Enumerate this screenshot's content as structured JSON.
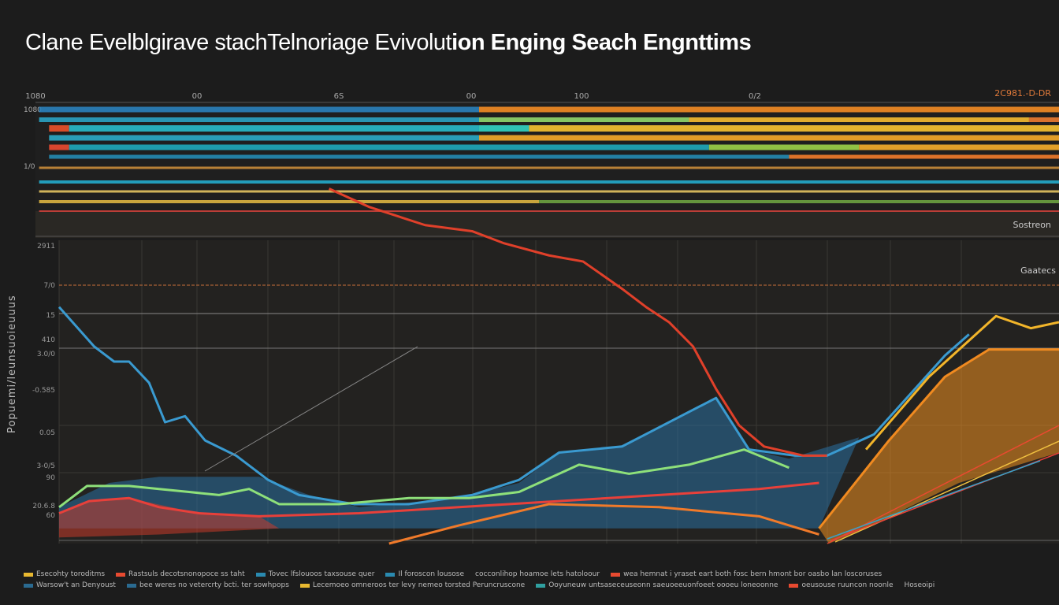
{
  "title_light": "Clane Evelblgirave stachTelnoriage Evivolut",
  "title_bold": "ion Enging Seach Engnttims",
  "y_axis_label": "Popuemi/leunsuoieuuus",
  "right_labels": [
    "2C981.-D-DR",
    "Sostreon",
    "Gaatecs"
  ],
  "chart_data": {
    "type": "line",
    "title": "Clane Evelblgirave stachTelnoriage Evivolution Enging Seach Engnttims",
    "top_tick_labels": [
      "1080",
      "00",
      "6S",
      "00",
      "100",
      "0/2"
    ],
    "y_tick_labels": [
      "2911",
      "7/0",
      "15",
      "410",
      "3.0/0",
      "-0.585",
      "0.05",
      "3-0/5",
      "90",
      "20.6.8",
      "60"
    ],
    "grid": true,
    "legend_placement": "bottom",
    "bars": [
      {
        "segments": [
          {
            "from": -2,
            "to": 42,
            "color": "#2a7fb8"
          },
          {
            "from": 42,
            "to": 100,
            "color": "#f08a24"
          }
        ]
      },
      {
        "segments": [
          {
            "from": -2,
            "to": 42,
            "color": "#2a9fc0"
          },
          {
            "from": 42,
            "to": 63,
            "color": "#8fd46a"
          },
          {
            "from": 63,
            "to": 97,
            "color": "#f2b830"
          },
          {
            "from": 97,
            "to": 100,
            "color": "#e87a30"
          }
        ]
      },
      {
        "segments": [
          {
            "from": -1,
            "to": 1,
            "color": "#e8502a"
          },
          {
            "from": 1,
            "to": 42,
            "color": "#28b8c8"
          },
          {
            "from": 42,
            "to": 47,
            "color": "#32d0c0"
          },
          {
            "from": 47,
            "to": 100,
            "color": "#f4c030"
          }
        ]
      },
      {
        "segments": [
          {
            "from": -1,
            "to": 42,
            "color": "#2aa8c4"
          },
          {
            "from": 42,
            "to": 100,
            "color": "#f2a828"
          }
        ]
      },
      {
        "segments": [
          {
            "from": -1,
            "to": 1,
            "color": "#e84a30"
          },
          {
            "from": 1,
            "to": 65,
            "color": "#1ea7b8"
          },
          {
            "from": 65,
            "to": 80,
            "color": "#9bd048"
          },
          {
            "from": 80,
            "to": 100,
            "color": "#f3ab2a"
          }
        ]
      },
      {
        "segments": [
          {
            "from": -1,
            "to": 73,
            "color": "#2489b0"
          },
          {
            "from": 73,
            "to": 100,
            "color": "#ee7a2a"
          }
        ]
      },
      {
        "segments": [
          {
            "from": -2,
            "to": 100,
            "color": "#c58a3a"
          }
        ]
      },
      {
        "segments": [
          {
            "from": -2,
            "to": 100,
            "color": "#24a8c8"
          }
        ]
      },
      {
        "segments": [
          {
            "from": -2,
            "to": 100,
            "color": "#e0c060"
          }
        ]
      },
      {
        "segments": [
          {
            "from": -2,
            "to": 48,
            "color": "#d8b040"
          },
          {
            "from": 48,
            "to": 100,
            "color": "#6aa040"
          }
        ]
      },
      {
        "segments": [
          {
            "from": -2,
            "to": 100,
            "color": "#c8403a"
          }
        ]
      }
    ],
    "series": [
      {
        "color": "#3a9ad0",
        "points": [
          [
            0,
            78
          ],
          [
            3.5,
            65
          ],
          [
            5.5,
            60
          ],
          [
            7,
            60
          ],
          [
            9,
            53
          ],
          [
            10.6,
            40
          ],
          [
            12.6,
            42
          ],
          [
            14.6,
            34
          ],
          [
            17.7,
            29
          ],
          [
            20.9,
            21
          ],
          [
            24,
            16
          ],
          [
            29.5,
            13
          ],
          [
            35,
            13
          ],
          [
            41.3,
            16
          ],
          [
            46,
            21
          ],
          [
            50,
            30
          ],
          [
            56.3,
            32
          ],
          [
            65.7,
            48
          ],
          [
            69,
            31
          ],
          [
            73.6,
            29
          ],
          [
            76.8,
            29
          ],
          [
            81.5,
            36
          ],
          [
            88.6,
            62
          ],
          [
            91,
            69
          ]
        ]
      },
      {
        "color": "#e0402a",
        "points": [
          [
            27,
            117
          ],
          [
            31,
            111
          ],
          [
            36.6,
            105
          ],
          [
            41.3,
            103
          ],
          [
            44.5,
            99
          ],
          [
            49,
            95
          ],
          [
            52.4,
            93
          ],
          [
            56.3,
            84
          ],
          [
            58.7,
            78
          ],
          [
            61,
            73
          ],
          [
            63.4,
            65
          ],
          [
            65.7,
            51
          ],
          [
            68,
            39
          ],
          [
            70.5,
            32
          ],
          [
            74.4,
            29
          ],
          [
            76.8,
            29
          ]
        ]
      },
      {
        "color": "#f2b52a",
        "points": [
          [
            80.7,
            31
          ],
          [
            87,
            55
          ],
          [
            93.7,
            75
          ],
          [
            97.2,
            71
          ],
          [
            100,
            73
          ]
        ]
      },
      {
        "color": "#f08a20",
        "points": [
          [
            76,
            5
          ],
          [
            83,
            34
          ],
          [
            88.6,
            55
          ],
          [
            93,
            64
          ],
          [
            100,
            64
          ]
        ]
      },
      {
        "color": "#8ee07a",
        "points": [
          [
            0,
            12
          ],
          [
            2.8,
            19
          ],
          [
            7,
            19
          ],
          [
            10,
            18
          ],
          [
            13,
            17
          ],
          [
            16,
            16
          ],
          [
            19,
            18
          ],
          [
            22,
            13
          ],
          [
            28,
            13
          ],
          [
            35,
            15
          ],
          [
            41,
            15
          ],
          [
            46,
            17
          ],
          [
            52,
            26
          ],
          [
            57,
            23
          ],
          [
            63,
            26
          ],
          [
            68.5,
            31
          ],
          [
            73,
            25
          ]
        ]
      },
      {
        "color": "#e8403a",
        "points": [
          [
            0,
            10
          ],
          [
            3,
            14
          ],
          [
            7,
            15
          ],
          [
            10,
            12
          ],
          [
            14,
            10
          ],
          [
            20,
            9
          ],
          [
            30,
            10
          ],
          [
            40,
            12
          ],
          [
            50,
            14
          ],
          [
            60,
            16
          ],
          [
            70,
            18
          ],
          [
            76,
            20
          ]
        ]
      },
      {
        "color": "#f07a2a",
        "points": [
          [
            33,
            0
          ],
          [
            40,
            6
          ],
          [
            49,
            13
          ],
          [
            60,
            12
          ],
          [
            70,
            9
          ],
          [
            76,
            3
          ]
        ]
      }
    ],
    "areas": [
      {
        "color": "#2a6fa0",
        "points": [
          [
            0,
            12
          ],
          [
            5,
            20
          ],
          [
            10,
            22
          ],
          [
            20,
            22
          ],
          [
            25,
            16
          ],
          [
            30,
            12
          ],
          [
            40,
            15
          ],
          [
            46,
            20
          ],
          [
            50,
            30
          ],
          [
            56,
            32
          ],
          [
            65.7,
            48
          ],
          [
            69,
            31
          ],
          [
            73,
            28
          ],
          [
            80,
            35
          ],
          [
            76,
            5
          ],
          [
            60,
            5
          ],
          [
            40,
            5
          ],
          [
            20,
            5
          ],
          [
            0,
            5
          ]
        ]
      },
      {
        "color": "#c83a2a",
        "points": [
          [
            0,
            10
          ],
          [
            3,
            14
          ],
          [
            7,
            15
          ],
          [
            14,
            10
          ],
          [
            20,
            9
          ],
          [
            22,
            5
          ],
          [
            10,
            3
          ],
          [
            0,
            2
          ]
        ]
      },
      {
        "color": "#f0901f",
        "points": [
          [
            76,
            5
          ],
          [
            83,
            34
          ],
          [
            88.6,
            55
          ],
          [
            93,
            64
          ],
          [
            100,
            64
          ],
          [
            100,
            30
          ],
          [
            90,
            20
          ],
          [
            80,
            4
          ],
          [
            77,
            0
          ]
        ]
      }
    ],
    "legend": [
      [
        {
          "label": "Esecohty toroditms",
          "color": "#e8b830"
        },
        {
          "label": "Rastsuls decotsnonopoce ss taht",
          "color": "#e84a30"
        },
        {
          "label": "Tovec lfslouoos taxsouse quer",
          "color": "#2a8ab0"
        },
        {
          "label": "Il foroscon lousose",
          "color": "#2a8ab0"
        },
        {
          "label": "cocconlihop hoamoe lets hatoloour",
          "color": ""
        },
        {
          "label": "wea hemnat i yraset eart both fosc bern hmont bor oasbo lan loscoruses",
          "color": "#e84a30"
        }
      ],
      [
        {
          "label": "Warsow't an Denyoust",
          "color": "#2a6a90"
        },
        {
          "label": "bee weres no vetercrty bcti. ter sowhpops",
          "color": "#2a6a90"
        },
        {
          "label": "Lecemoeo omneroos ter levy nemeo torsted Peruncruscone",
          "color": "#e8b830"
        },
        {
          "label": "Ooyuneuw untsaseceuseonn saeuoeeuonfoeet oooeu loneoonne",
          "color": "#30a0a0"
        },
        {
          "label": "oeusouse ruuncon noonle",
          "color": "#e84a30"
        },
        {
          "label": "Hoseoipi",
          "color": ""
        }
      ]
    ]
  }
}
